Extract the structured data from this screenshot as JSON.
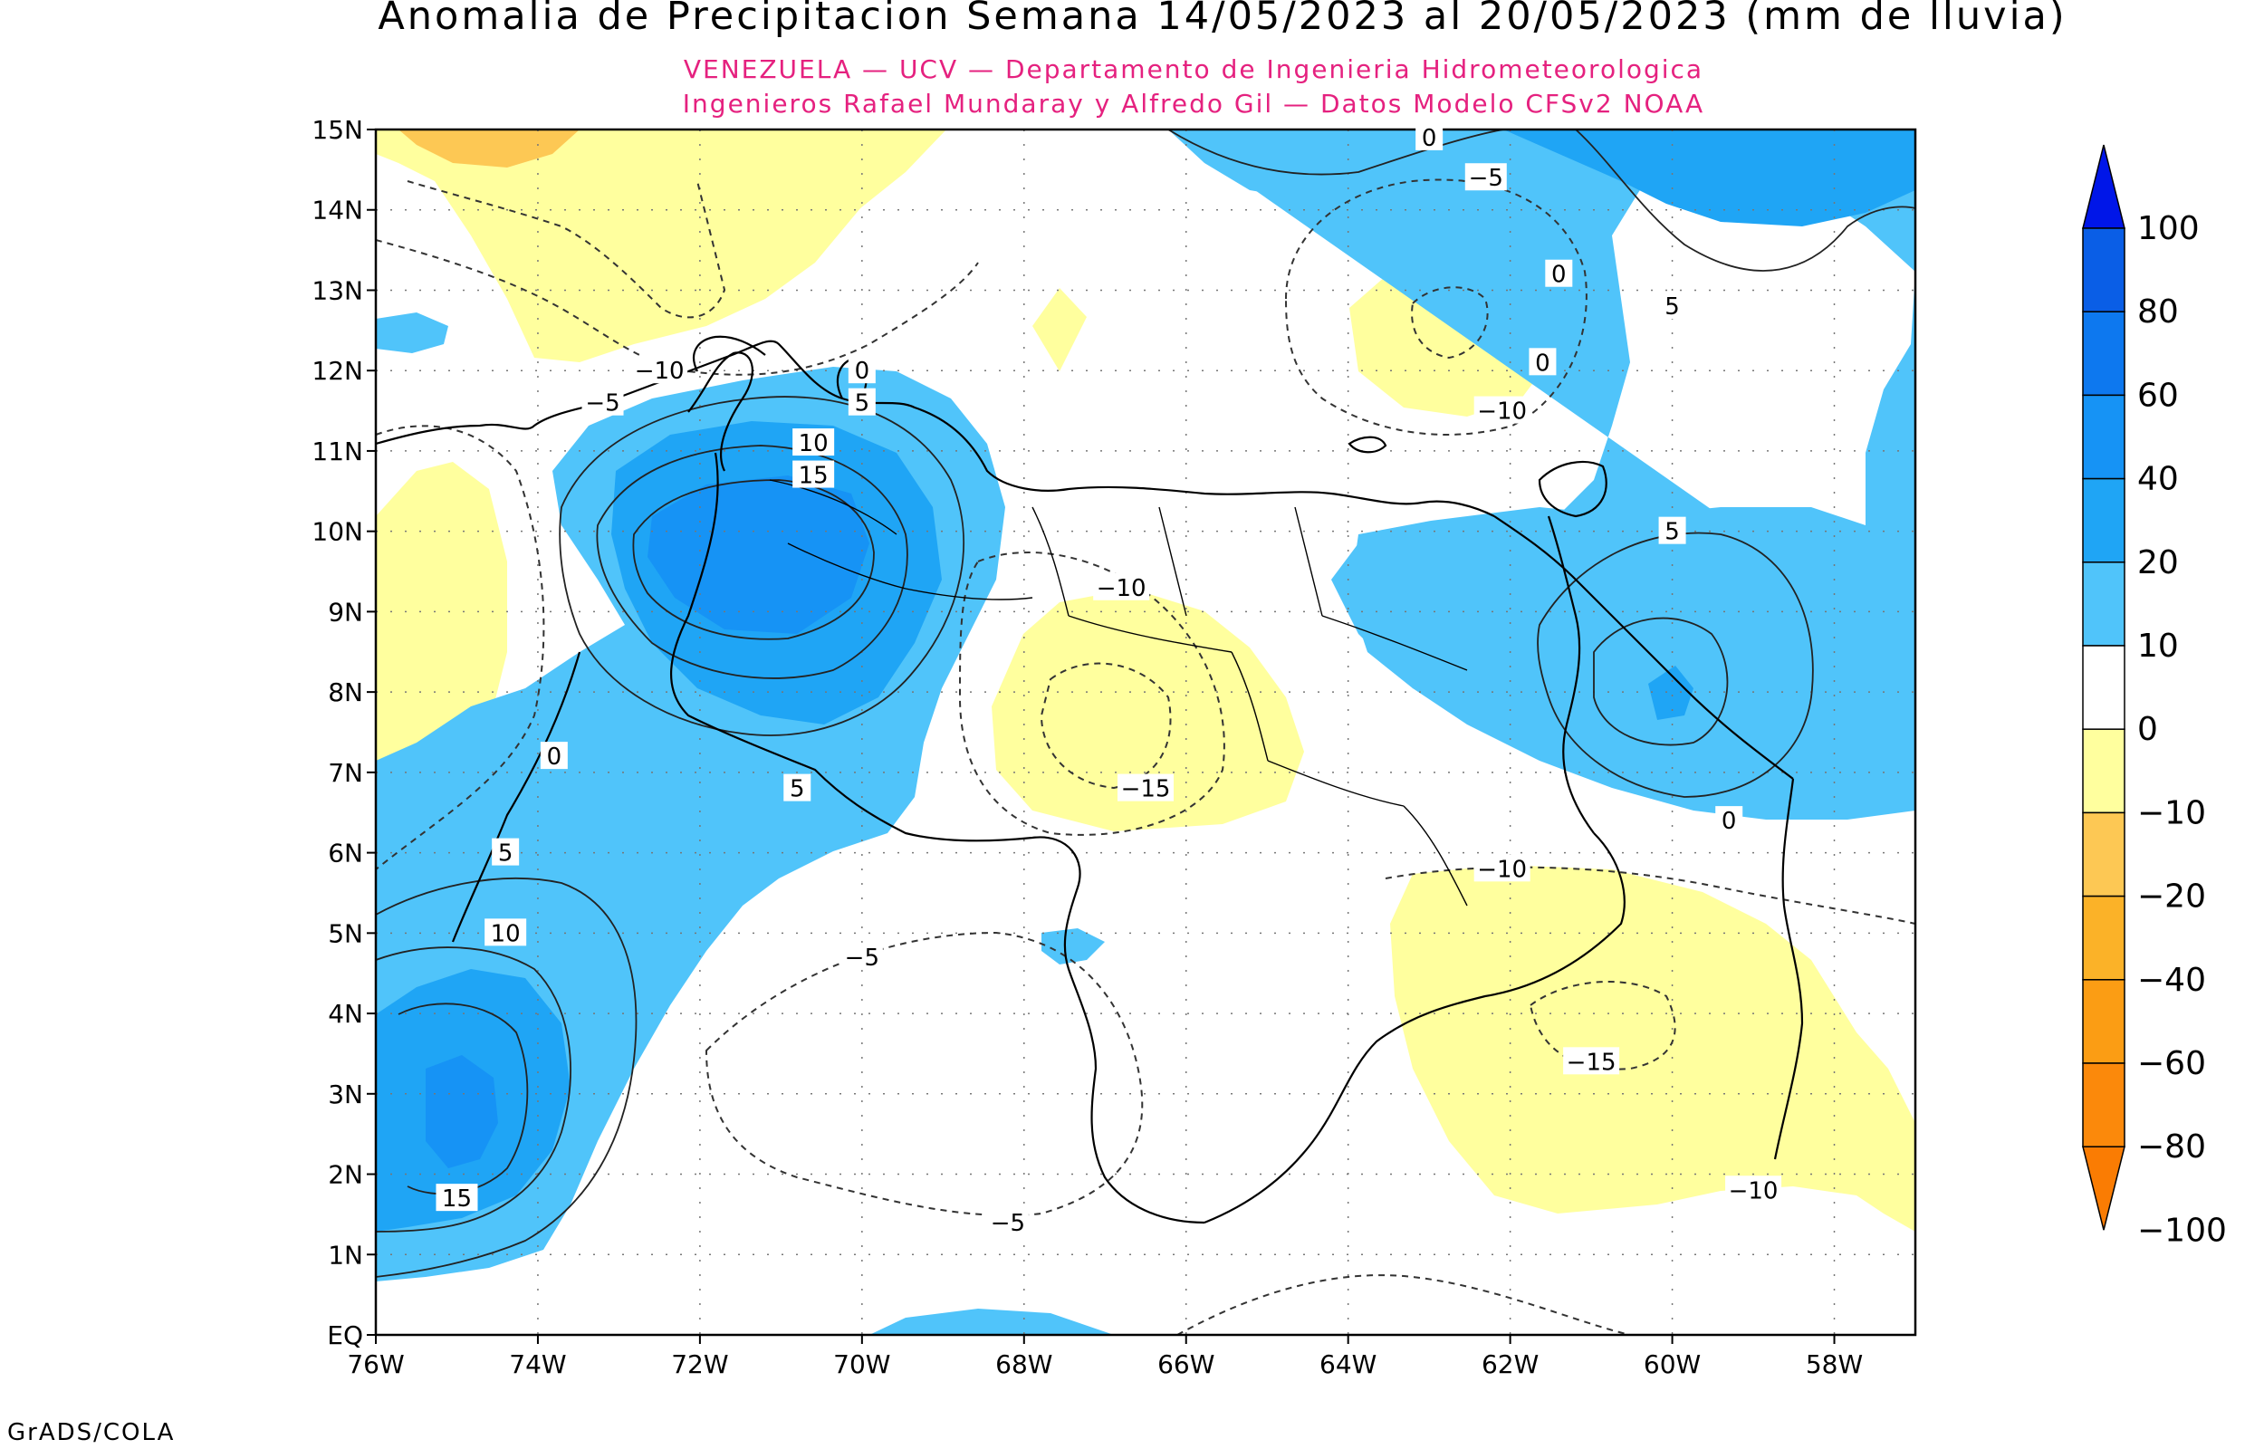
{
  "title": "Anomalia de Precipitacion Semana 14/05/2023 al 20/05/2023 (mm de lluvia)",
  "subtitle_line1": "VENEZUELA — UCV — Departamento de Ingenieria Hidrometeorologica",
  "subtitle_line2": "Ingenieros Rafael Mundaray y Alfredo Gil — Datos Modelo CFSv2 NOAA",
  "credit": "GrADS/COLA",
  "map": {
    "lon_range": [
      -76,
      -57
    ],
    "lat_range": [
      0,
      15
    ],
    "x_ticks": [
      {
        "v": -76,
        "label": "76W"
      },
      {
        "v": -74,
        "label": "74W"
      },
      {
        "v": -72,
        "label": "72W"
      },
      {
        "v": -70,
        "label": "70W"
      },
      {
        "v": -68,
        "label": "68W"
      },
      {
        "v": -66,
        "label": "66W"
      },
      {
        "v": -64,
        "label": "64W"
      },
      {
        "v": -62,
        "label": "62W"
      },
      {
        "v": -60,
        "label": "60W"
      },
      {
        "v": -58,
        "label": "58W"
      }
    ],
    "y_ticks": [
      {
        "v": 0,
        "label": "EQ"
      },
      {
        "v": 1,
        "label": "1N"
      },
      {
        "v": 2,
        "label": "2N"
      },
      {
        "v": 3,
        "label": "3N"
      },
      {
        "v": 4,
        "label": "4N"
      },
      {
        "v": 5,
        "label": "5N"
      },
      {
        "v": 6,
        "label": "6N"
      },
      {
        "v": 7,
        "label": "7N"
      },
      {
        "v": 8,
        "label": "8N"
      },
      {
        "v": 9,
        "label": "9N"
      },
      {
        "v": 10,
        "label": "10N"
      },
      {
        "v": 11,
        "label": "11N"
      },
      {
        "v": 12,
        "label": "12N"
      },
      {
        "v": 13,
        "label": "13N"
      },
      {
        "v": 14,
        "label": "14N"
      },
      {
        "v": 15,
        "label": "15N"
      }
    ],
    "grid": true
  },
  "colorbar": {
    "levels": [
      {
        "label": "100",
        "v": 100
      },
      {
        "label": "80",
        "v": 80
      },
      {
        "label": "60",
        "v": 60
      },
      {
        "label": "40",
        "v": 40
      },
      {
        "label": "20",
        "v": 20
      },
      {
        "label": "10",
        "v": 10
      },
      {
        "label": "0",
        "v": 0
      },
      {
        "label": "−10",
        "v": -10
      },
      {
        "label": "−20",
        "v": -20
      },
      {
        "label": "−40",
        "v": -40
      },
      {
        "label": "−60",
        "v": -60
      },
      {
        "label": "−80",
        "v": -80
      },
      {
        "label": "−100",
        "v": -100
      }
    ],
    "colors": [
      "#0016e8",
      "#0a5ee6",
      "#0d78ef",
      "#1693f5",
      "#1fa5f5",
      "#50c4fa",
      "#ffffff",
      "#ffff9e",
      "#fdc854",
      "#fbb228",
      "#fb9d14",
      "#fb890b",
      "#fa7c03"
    ]
  },
  "fill_colors": {
    "neg_light": "#ffff9e",
    "neg_orange": "#fdc854",
    "pos_light": "#50c4fa",
    "pos_mid": "#1fa5f5",
    "pos_deep": "#1693f5"
  },
  "contour_labels": [
    {
      "text": "0",
      "lon": -63.0,
      "lat": 14.9
    },
    {
      "text": "−5",
      "lon": -62.3,
      "lat": 14.4
    },
    {
      "text": "0",
      "lon": -61.4,
      "lat": 13.2
    },
    {
      "text": "5",
      "lon": -60.0,
      "lat": 12.8
    },
    {
      "text": "0",
      "lon": -61.6,
      "lat": 12.1
    },
    {
      "text": "−10",
      "lon": -62.1,
      "lat": 11.5
    },
    {
      "text": "−10",
      "lon": -72.5,
      "lat": 12.0
    },
    {
      "text": "−5",
      "lon": -73.2,
      "lat": 11.6
    },
    {
      "text": "0",
      "lon": -70.0,
      "lat": 12.0
    },
    {
      "text": "5",
      "lon": -70.0,
      "lat": 11.6
    },
    {
      "text": "10",
      "lon": -70.6,
      "lat": 11.1
    },
    {
      "text": "15",
      "lon": -70.6,
      "lat": 10.7
    },
    {
      "text": "5",
      "lon": -60.0,
      "lat": 10.0
    },
    {
      "text": "−10",
      "lon": -66.8,
      "lat": 9.3
    },
    {
      "text": "0",
      "lon": -73.8,
      "lat": 7.2
    },
    {
      "text": "5",
      "lon": -70.8,
      "lat": 6.8
    },
    {
      "text": "−15",
      "lon": -66.5,
      "lat": 6.8
    },
    {
      "text": "0",
      "lon": -59.3,
      "lat": 6.4
    },
    {
      "text": "5",
      "lon": -74.4,
      "lat": 6.0
    },
    {
      "text": "−10",
      "lon": -62.1,
      "lat": 5.8
    },
    {
      "text": "10",
      "lon": -74.4,
      "lat": 5.0
    },
    {
      "text": "−5",
      "lon": -70.0,
      "lat": 4.7
    },
    {
      "text": "−15",
      "lon": -61.0,
      "lat": 3.4
    },
    {
      "text": "−10",
      "lon": -59.0,
      "lat": 1.8
    },
    {
      "text": "15",
      "lon": -75.0,
      "lat": 1.7
    },
    {
      "text": "−5",
      "lon": -68.2,
      "lat": 1.4
    }
  ]
}
